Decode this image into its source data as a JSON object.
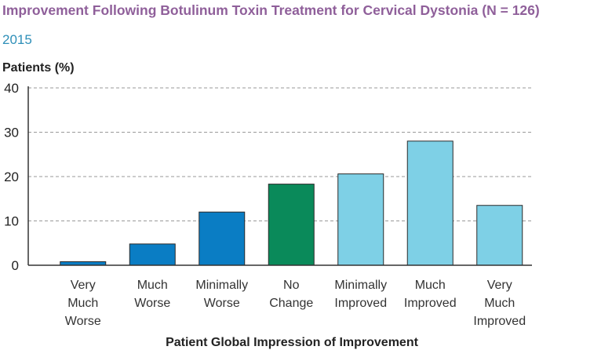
{
  "chart_data": {
    "type": "bar",
    "title": "Improvement Following Botulinum Toxin Treatment for Cervical Dystonia (N = 126)",
    "subtitle": "2015",
    "ylabel": "Patients (%)",
    "xlabel": "Patient Global Impression of Improvement",
    "ylim": [
      0,
      40
    ],
    "yticks": [
      0,
      10,
      20,
      30,
      40
    ],
    "grid": true,
    "categories": [
      [
        "Very",
        "Much",
        "Worse"
      ],
      [
        "Much",
        "Worse"
      ],
      [
        "Minimally",
        "Worse"
      ],
      [
        "No",
        "Change"
      ],
      [
        "Minimally",
        "Improved"
      ],
      [
        "Much",
        "Improved"
      ],
      [
        "Very",
        "Much",
        "Improved"
      ]
    ],
    "values": [
      0.8,
      4.8,
      12,
      18.3,
      20.6,
      28,
      13.5
    ],
    "colors": [
      "#0a7dc4",
      "#0a7dc4",
      "#0a7dc4",
      "#0a8a5a",
      "#7ed0e6",
      "#7ed0e6",
      "#7ed0e6"
    ]
  }
}
